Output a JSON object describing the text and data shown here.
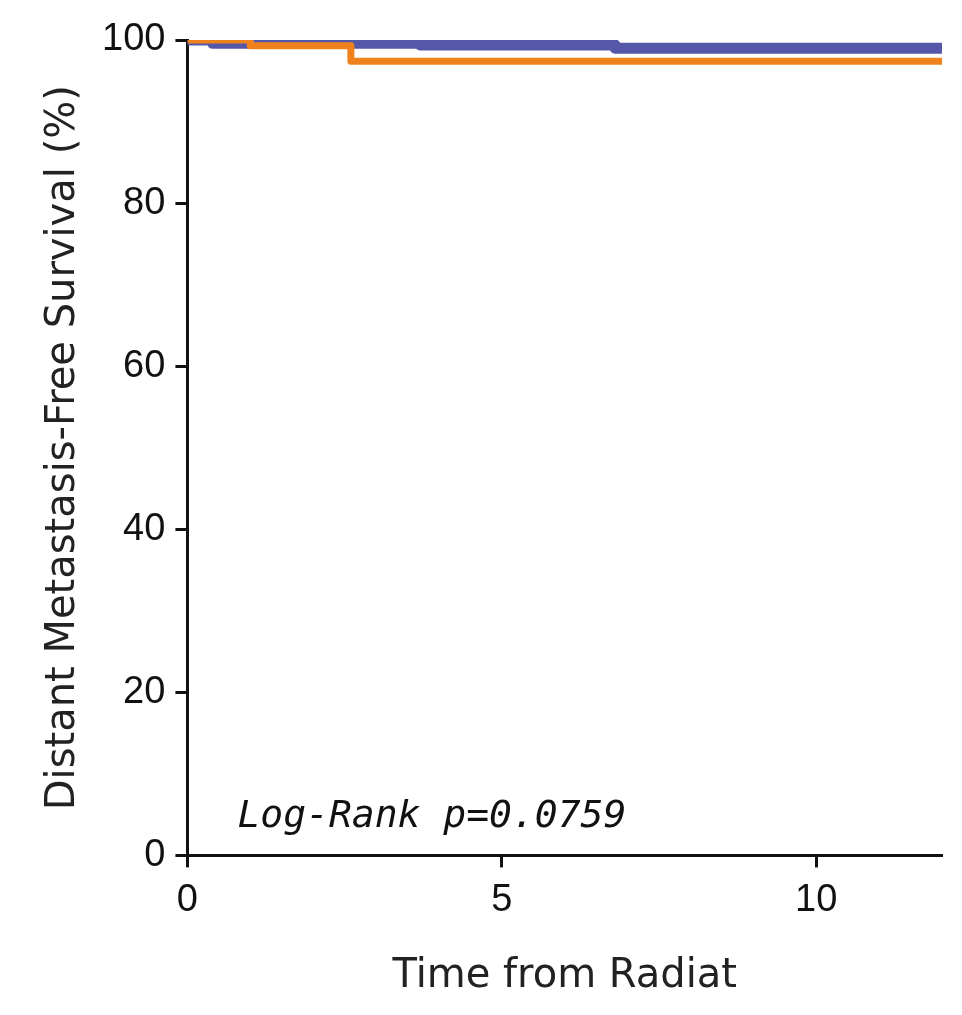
{
  "chart_data": {
    "type": "step",
    "xlabel": "Time from Radiat",
    "ylabel": "Distant Metastasis-Free Survival (%)",
    "xlim": [
      0,
      12
    ],
    "xticks": [
      0,
      5,
      10
    ],
    "ylim": [
      0,
      100
    ],
    "yticks": [
      0,
      20,
      40,
      60,
      80,
      100
    ],
    "grid": false,
    "legend": false,
    "marker": "none",
    "line_style": "solid",
    "annotations": [
      "Log-Rank p=0.0759"
    ],
    "series": [
      {
        "color": "#5558a8",
        "x": [
          0,
          0.4,
          3.7,
          6.8,
          12
        ],
        "values": [
          100,
          99.6,
          99.4,
          99.0,
          99.0
        ]
      },
      {
        "color": "#f0821e",
        "x": [
          0,
          1.0,
          2.6,
          12
        ],
        "values": [
          100,
          99.3,
          97.4,
          97.4
        ]
      }
    ]
  }
}
